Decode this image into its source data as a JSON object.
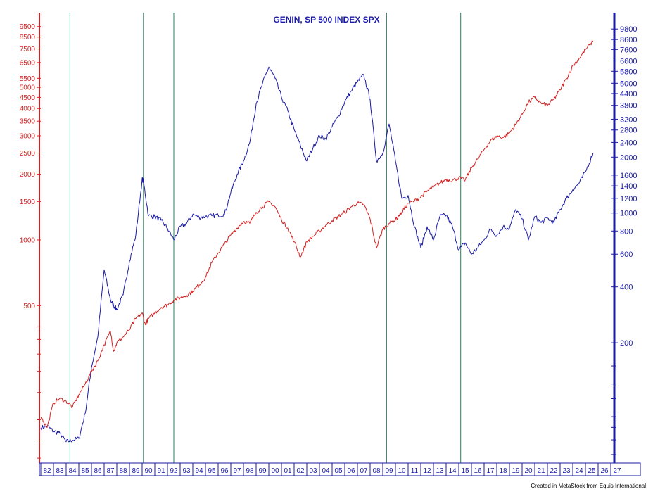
{
  "credit": "Created in MetaStock from Equis International",
  "colors": {
    "genin": "#d42020",
    "spx": "#1a1aa8",
    "cycle_lines": "#2e7d5b",
    "left_axis": "#d42020",
    "right_axis": "#1a1aa8",
    "x_axis": "#1a1aa8"
  },
  "chart_data": {
    "type": "line",
    "title": "GENIN, SP 500 INDEX SPX",
    "xlabel": "",
    "ylabel": "",
    "x_range": [
      1982,
      2027
    ],
    "x_tick_labels": [
      "82",
      "83",
      "84",
      "85",
      "86",
      "87",
      "88",
      "89",
      "90",
      "91",
      "92",
      "93",
      "94",
      "95",
      "96",
      "97",
      "98",
      "99",
      "00",
      "01",
      "02",
      "03",
      "04",
      "05",
      "06",
      "07",
      "08",
      "09",
      "10",
      "11",
      "12",
      "13",
      "14",
      "15",
      "16",
      "17",
      "18",
      "19",
      "20",
      "21",
      "22",
      "23",
      "24",
      "25",
      "26",
      "27"
    ],
    "left_axis": {
      "scale": "log",
      "range": [
        95,
        11000
      ],
      "tick_labels": [
        500,
        1000,
        1500,
        2000,
        2500,
        3000,
        3500,
        4000,
        4500,
        5000,
        5500,
        6500,
        7500,
        8500,
        9500
      ]
    },
    "right_axis": {
      "scale": "log",
      "range": [
        45,
        12000
      ],
      "tick_labels": [
        200,
        400,
        600,
        800,
        1000,
        1200,
        1400,
        1600,
        2000,
        2400,
        2800,
        3200,
        3800,
        4400,
        5000,
        5800,
        6600,
        7600,
        8600,
        9800
      ]
    },
    "vertical_lines_x": [
      1984.3,
      1990.1,
      1992.5,
      2009.3,
      2015.15
    ],
    "series": [
      {
        "key": "spx",
        "axis": "left",
        "color": "#1a1aa8",
        "x": [
          1982.0,
          1982.5,
          1983.0,
          1983.5,
          1984.0,
          1984.5,
          1985.0,
          1985.5,
          1986.0,
          1986.5,
          1987.0,
          1987.5,
          1987.75,
          1988.0,
          1988.5,
          1989.0,
          1989.5,
          1990.0,
          1990.1,
          1990.5,
          1991.0,
          1991.5,
          1992.0,
          1992.5,
          1993.0,
          1993.5,
          1994.0,
          1994.5,
          1995.0,
          1995.5,
          1996.0,
          1996.5,
          1997.0,
          1997.5,
          1998.0,
          1998.5,
          1999.0,
          1999.5,
          2000.0,
          2000.5,
          2001.0,
          2001.5,
          2002.0,
          2002.5,
          2003.0,
          2003.5,
          2004.0,
          2004.5,
          2005.0,
          2005.5,
          2006.0,
          2006.5,
          2007.0,
          2007.5,
          2008.0,
          2008.5,
          2009.0,
          2009.5,
          2010.0,
          2010.5,
          2011.0,
          2011.5,
          2012.0,
          2012.5,
          2013.0,
          2013.5,
          2014.0,
          2014.5,
          2015.0,
          2015.5,
          2016.0,
          2016.5,
          2017.0,
          2017.5,
          2018.0,
          2018.5,
          2019.0,
          2019.5,
          2020.0,
          2020.5,
          2021.0,
          2021.5,
          2022.0,
          2022.5,
          2023.0,
          2023.5,
          2024.0,
          2024.5,
          2025.0,
          2025.6
        ],
        "y": [
          138,
          140,
          133,
          130,
          119,
          121,
          123,
          160,
          260,
          360,
          730,
          530,
          500,
          480,
          560,
          800,
          1050,
          1900,
          1860,
          1290,
          1280,
          1230,
          1130,
          1000,
          1150,
          1190,
          1310,
          1270,
          1280,
          1290,
          1300,
          1310,
          1650,
          2000,
          2300,
          2800,
          4200,
          5200,
          6200,
          5500,
          4500,
          3900,
          3200,
          2700,
          2300,
          2650,
          3000,
          2900,
          3300,
          3700,
          4300,
          4800,
          5300,
          5700,
          4400,
          2300,
          2500,
          3400,
          2300,
          1550,
          1600,
          1150,
          920,
          1150,
          1000,
          1280,
          1300,
          1150,
          900,
          970,
          860,
          920,
          1000,
          1120,
          1050,
          1150,
          1130,
          1380,
          1250,
          1000,
          1280,
          1200,
          1260,
          1200,
          1380,
          1550,
          1700,
          1820,
          2050,
          2500
        ]
      },
      {
        "key": "genin",
        "axis": "right",
        "color": "#d42020",
        "x": [
          1982.0,
          1982.5,
          1983.0,
          1983.5,
          1984.0,
          1984.5,
          1985.0,
          1985.5,
          1986.0,
          1986.5,
          1987.0,
          1987.5,
          1987.75,
          1988.0,
          1988.5,
          1989.0,
          1989.5,
          1990.0,
          1990.25,
          1990.5,
          1991.0,
          1991.5,
          1992.0,
          1992.5,
          1993.0,
          1993.5,
          1994.0,
          1994.5,
          1995.0,
          1995.5,
          1996.0,
          1996.5,
          1997.0,
          1997.5,
          1998.0,
          1998.5,
          1999.0,
          1999.5,
          2000.0,
          2000.5,
          2001.0,
          2001.5,
          2002.0,
          2002.5,
          2003.0,
          2003.5,
          2004.0,
          2004.5,
          2005.0,
          2005.5,
          2006.0,
          2006.5,
          2007.0,
          2007.5,
          2008.0,
          2008.5,
          2009.0,
          2009.5,
          2010.0,
          2010.5,
          2011.0,
          2011.5,
          2012.0,
          2012.5,
          2013.0,
          2013.5,
          2014.0,
          2014.5,
          2015.0,
          2015.5,
          2016.0,
          2016.5,
          2017.0,
          2017.5,
          2018.0,
          2018.5,
          2019.0,
          2019.5,
          2020.0,
          2020.5,
          2021.0,
          2021.5,
          2022.0,
          2022.5,
          2023.0,
          2023.5,
          2024.0,
          2024.5,
          2025.0,
          2025.6
        ],
        "y": [
          80,
          70,
          95,
          100,
          97,
          90,
          105,
          120,
          140,
          160,
          195,
          230,
          180,
          200,
          215,
          235,
          270,
          290,
          250,
          270,
          290,
          310,
          320,
          340,
          350,
          360,
          380,
          410,
          450,
          540,
          610,
          680,
          760,
          830,
          900,
          880,
          1010,
          1080,
          1150,
          1080,
          920,
          830,
          700,
          580,
          700,
          750,
          800,
          860,
          910,
          960,
          1010,
          1080,
          1130,
          1110,
          930,
          650,
          820,
          880,
          920,
          1010,
          1130,
          1160,
          1220,
          1310,
          1380,
          1450,
          1520,
          1500,
          1550,
          1500,
          1750,
          1950,
          2200,
          2450,
          2600,
          2550,
          2700,
          3000,
          3400,
          3950,
          4200,
          3900,
          3800,
          4100,
          4600,
          5300,
          6200,
          6800,
          7600,
          8400
        ]
      }
    ]
  }
}
